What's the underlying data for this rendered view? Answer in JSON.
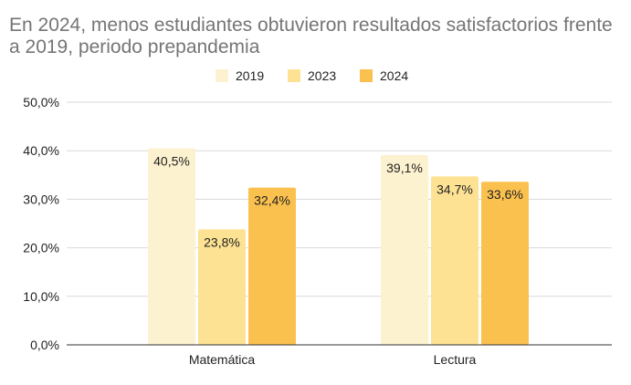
{
  "chart_data": {
    "type": "bar",
    "title": "En 2024, menos estudiantes obtuvieron resultados satisfactorios frente a 2019, periodo prepandemia",
    "categories": [
      "Matemática",
      "Lectura"
    ],
    "series": [
      {
        "name": "2019",
        "color": "#fdf2d0",
        "values": [
          40.5,
          39.1
        ],
        "labels": [
          "40,5%",
          "39,1%"
        ]
      },
      {
        "name": "2023",
        "color": "#fde293",
        "values": [
          23.8,
          34.7
        ],
        "labels": [
          "23,8%",
          "34,7%"
        ]
      },
      {
        "name": "2024",
        "color": "#fbc14f",
        "values": [
          32.4,
          33.6
        ],
        "labels": [
          "32,4%",
          "33,6%"
        ]
      }
    ],
    "ylim": [
      0,
      50
    ],
    "yticks": [
      0,
      10,
      20,
      30,
      40,
      50
    ],
    "ytick_labels": [
      "0,0%",
      "10,0%",
      "20,0%",
      "30,0%",
      "40,0%",
      "50,0%"
    ],
    "legend_position": "top",
    "grid": true,
    "xlabel": "",
    "ylabel": ""
  }
}
